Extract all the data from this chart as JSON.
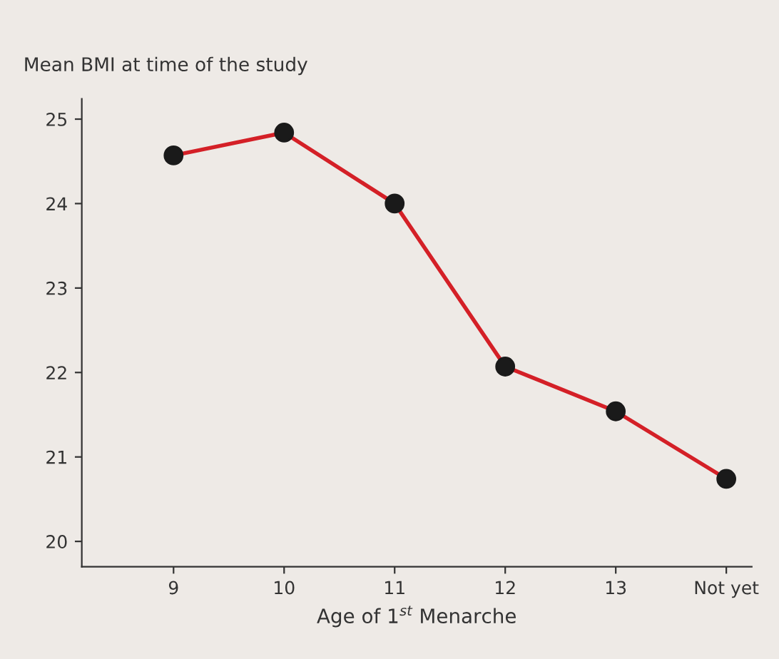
{
  "chart_data": {
    "type": "line",
    "ylabel": "Mean BMI at time of the study",
    "xlabel": "Age of 1$^{st}$ Menarche",
    "categories": [
      "9",
      "10",
      "11",
      "12",
      "13",
      "Not yet"
    ],
    "series": [
      {
        "color": "#d42027",
        "values": [
          24.57,
          24.84,
          24.0,
          22.07,
          21.54,
          20.74
        ]
      }
    ],
    "ylim": [
      19.7,
      25.24
    ],
    "yticks": [
      20,
      21,
      22,
      23,
      24,
      25
    ],
    "marker": "circle",
    "line_style": "solid",
    "grid": false
  }
}
